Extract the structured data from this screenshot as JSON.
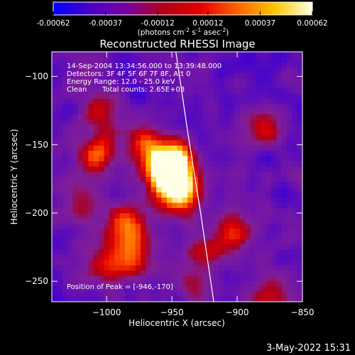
{
  "chart_data": {
    "type": "heatmap",
    "title": "Reconstructed RHESSI Image",
    "colorbar": {
      "tick_labels": [
        "-0.00062",
        "-0.00037",
        "-0.00012",
        "0.00012",
        "0.00037",
        "0.00062"
      ],
      "tick_values": [
        -0.00062,
        -0.00037,
        -0.00012,
        0.00012,
        0.00037,
        0.00062
      ],
      "range": [
        -0.00062,
        0.00062
      ],
      "unit_label": "(photons cm",
      "unit_label_parts": [
        "(photons cm",
        "-2",
        " s",
        "-1",
        " asec",
        "-2",
        ")"
      ],
      "colors": [
        "#0000ff",
        "#4b00c8",
        "#7800a0",
        "#b40014",
        "#e60000",
        "#ff6400",
        "#ffc800",
        "#ffffe6"
      ]
    },
    "xlabel": "Heliocentric X (arcsec)",
    "ylabel": "Heliocentric Y (arcsec)",
    "xlim": [
      -1042,
      -850
    ],
    "ylim": [
      -265,
      -82
    ],
    "x_ticks": [
      -1000,
      -950,
      -900,
      -850
    ],
    "x_tick_labels": [
      "−1000",
      "−950",
      "−900",
      "−850"
    ],
    "y_ticks": [
      -100,
      -150,
      -200,
      -250
    ],
    "y_tick_labels": [
      "−100",
      "−150",
      "−200",
      "−250"
    ],
    "peak": {
      "x": -946,
      "y": -170,
      "level": 1.0
    },
    "blobs": [
      {
        "x": -948,
        "y": -163,
        "level": 0.95
      },
      {
        "x": -945,
        "y": -184,
        "level": 0.85
      },
      {
        "x": -955,
        "y": -172,
        "level": 0.8
      },
      {
        "x": -970,
        "y": -150,
        "level": 0.55
      },
      {
        "x": -1008,
        "y": -157,
        "level": 0.6
      },
      {
        "x": -1004,
        "y": -127,
        "level": 0.45
      },
      {
        "x": -985,
        "y": -208,
        "level": 0.6
      },
      {
        "x": -982,
        "y": -232,
        "level": 0.65
      },
      {
        "x": -1018,
        "y": -195,
        "level": 0.35
      },
      {
        "x": -1004,
        "y": -240,
        "level": 0.4
      },
      {
        "x": -928,
        "y": -228,
        "level": 0.35
      },
      {
        "x": -905,
        "y": -215,
        "level": 0.5
      },
      {
        "x": -880,
        "y": -138,
        "level": 0.45
      },
      {
        "x": -874,
        "y": -260,
        "level": 0.4
      },
      {
        "x": -935,
        "y": -250,
        "level": 0.3
      }
    ],
    "limb_line": [
      [
        -947,
        -82
      ],
      [
        -938,
        -140
      ],
      [
        -928,
        -200
      ],
      [
        -918,
        -265
      ]
    ]
  },
  "annotations": {
    "line1": "14-Sep-2004 13:34:56.000 to 13:39:48.000",
    "line2": "Detectors: 3F 4F 5F 6F 7F 8F, Att 0",
    "line3": "Energy Range: 12.0 - 25.0 keV",
    "line4_a": "Clean",
    "line4_b": "Total counts: 2.65E+03",
    "peak_label": "Position of Peak = [-946,-170]"
  },
  "footer": {
    "timestamp": "3-May-2022 15:31"
  }
}
